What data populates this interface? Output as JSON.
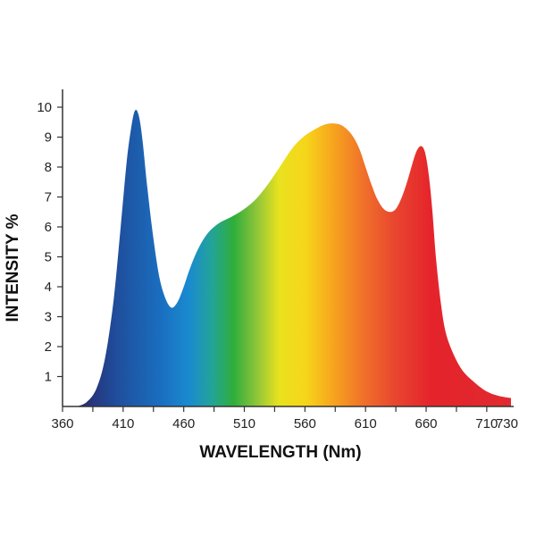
{
  "chart_data": {
    "type": "area",
    "title": "",
    "xlabel": "WAVELENGTH (Nm)",
    "ylabel": "INTENSITY %",
    "xlim": [
      360,
      730
    ],
    "ylim": [
      0,
      10.5
    ],
    "x_ticks": [
      360,
      410,
      460,
      510,
      560,
      610,
      660,
      710,
      730
    ],
    "y_ticks": [
      1,
      2,
      3,
      4,
      5,
      6,
      7,
      8,
      9,
      10
    ],
    "x_tick_labels": [
      "360",
      "410",
      "460",
      "510",
      "560",
      "610",
      "660",
      "710",
      "730"
    ],
    "y_tick_labels": [
      "1",
      "2",
      "3",
      "4",
      "5",
      "6",
      "7",
      "8",
      "9",
      "10"
    ],
    "grid": false,
    "fill": "visible-spectrum gradient",
    "series": [
      {
        "x": [
          372,
          380,
          388,
          395,
          402,
          408,
          413,
          417,
          420,
          423,
          426,
          430,
          435,
          440,
          445,
          450,
          455,
          460,
          465,
          470,
          475,
          480,
          485,
          490,
          495,
          500,
          510,
          520,
          530,
          540,
          550,
          560,
          570,
          575,
          580,
          585,
          590,
          595,
          600,
          605,
          610,
          615,
          620,
          625,
          630,
          635,
          640,
          645,
          650,
          653,
          656,
          659,
          662,
          665,
          668,
          672,
          676,
          682,
          690,
          700,
          710,
          720,
          730
        ],
        "y": [
          0,
          0.15,
          0.6,
          1.6,
          3.5,
          6.0,
          8.2,
          9.4,
          9.9,
          9.7,
          8.9,
          7.3,
          5.6,
          4.3,
          3.6,
          3.3,
          3.5,
          4.0,
          4.6,
          5.1,
          5.5,
          5.8,
          6.0,
          6.15,
          6.25,
          6.35,
          6.6,
          6.95,
          7.45,
          8.05,
          8.65,
          9.05,
          9.3,
          9.4,
          9.45,
          9.45,
          9.4,
          9.25,
          9.0,
          8.6,
          8.0,
          7.4,
          6.9,
          6.6,
          6.5,
          6.6,
          7.0,
          7.6,
          8.3,
          8.6,
          8.7,
          8.5,
          7.8,
          6.6,
          5.0,
          3.5,
          2.5,
          1.8,
          1.2,
          0.8,
          0.5,
          0.35,
          0.28
        ]
      }
    ]
  }
}
